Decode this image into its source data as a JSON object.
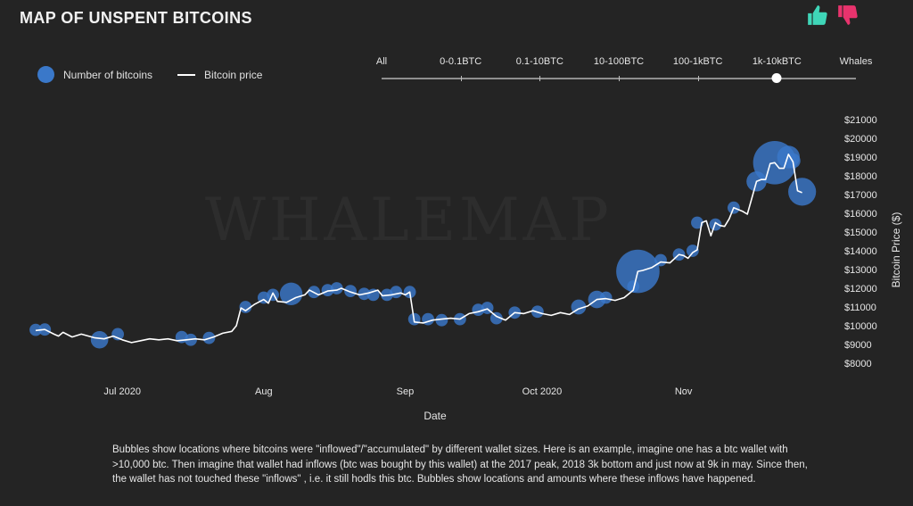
{
  "page": {
    "title": "MAP OF UNSPENT BITCOINS",
    "watermark": "WHALEMAP",
    "description": "Bubbles show locations where bitcoins were \"inflowed\"/\"accumulated\" by different wallet sizes. Here is an example, imagine one has a btc wallet with >10,000 btc. Then imagine that wallet had inflows (btc was bought by this wallet) at the 2017 peak, 2018 3k bottom and just now at 9k in may. Since then, the wallet has not touched these \"inflows\" , i.e. it still hodls this btc. Bubbles show locations and amounts where these inflows have happened."
  },
  "feedback": {
    "like_icon": "thumbs-up-icon",
    "dislike_icon": "thumbs-down-icon",
    "like_color": "#3fd6b8",
    "dislike_color": "#e8336d"
  },
  "legend": {
    "bubbles_label": "Number of bitcoins",
    "line_label": "Bitcoin price",
    "bubble_color": "#3a78c9",
    "line_color": "#ffffff"
  },
  "filter": {
    "options": [
      "All",
      "0-0.1BTC",
      "0.1-10BTC",
      "10-100BTC",
      "100-1kBTC",
      "1k-10kBTC",
      "Whales"
    ],
    "selected": "1k-10kBTC"
  },
  "chart_data": {
    "type": "scatter",
    "xlabel": "Date",
    "ylabel": "Bitcoin Price ($)",
    "x_ticks": [
      {
        "label": "Jul 2020",
        "date": "2020-07-01"
      },
      {
        "label": "Aug",
        "date": "2020-08-01"
      },
      {
        "label": "Sep",
        "date": "2020-09-01"
      },
      {
        "label": "Oct 2020",
        "date": "2020-10-01"
      },
      {
        "label": "Nov",
        "date": "2020-11-01"
      }
    ],
    "x_range": [
      "2020-06-12",
      "2020-11-30"
    ],
    "y_ticks": [
      8000,
      9000,
      10000,
      11000,
      12000,
      13000,
      14000,
      15000,
      16000,
      17000,
      18000,
      19000,
      20000,
      21000
    ],
    "y_tick_format": "${v}",
    "ylim": [
      8000,
      21000
    ],
    "y_axis_side": "right",
    "grid": false,
    "price_series": {
      "name": "Bitcoin price",
      "points": [
        [
          "2020-06-12",
          9750
        ],
        [
          "2020-06-14",
          9800
        ],
        [
          "2020-06-16",
          9550
        ],
        [
          "2020-06-17",
          9450
        ],
        [
          "2020-06-18",
          9650
        ],
        [
          "2020-06-20",
          9400
        ],
        [
          "2020-06-22",
          9550
        ],
        [
          "2020-06-25",
          9350
        ],
        [
          "2020-06-27",
          9300
        ],
        [
          "2020-06-29",
          9450
        ],
        [
          "2020-07-01",
          9250
        ],
        [
          "2020-07-03",
          9100
        ],
        [
          "2020-07-05",
          9200
        ],
        [
          "2020-07-07",
          9300
        ],
        [
          "2020-07-09",
          9250
        ],
        [
          "2020-07-11",
          9300
        ],
        [
          "2020-07-13",
          9200
        ],
        [
          "2020-07-15",
          9250
        ],
        [
          "2020-07-17",
          9300
        ],
        [
          "2020-07-19",
          9250
        ],
        [
          "2020-07-21",
          9400
        ],
        [
          "2020-07-23",
          9600
        ],
        [
          "2020-07-25",
          9700
        ],
        [
          "2020-07-26",
          10000
        ],
        [
          "2020-07-27",
          10950
        ],
        [
          "2020-07-28",
          10800
        ],
        [
          "2020-07-30",
          11150
        ],
        [
          "2020-08-01",
          11400
        ],
        [
          "2020-08-02",
          11200
        ],
        [
          "2020-08-03",
          11750
        ],
        [
          "2020-08-04",
          11300
        ],
        [
          "2020-08-06",
          11250
        ],
        [
          "2020-08-08",
          11500
        ],
        [
          "2020-08-10",
          11650
        ],
        [
          "2020-08-11",
          11900
        ],
        [
          "2020-08-13",
          11650
        ],
        [
          "2020-08-15",
          11850
        ],
        [
          "2020-08-17",
          11900
        ],
        [
          "2020-08-18",
          12000
        ],
        [
          "2020-08-20",
          11800
        ],
        [
          "2020-08-22",
          11650
        ],
        [
          "2020-08-24",
          11750
        ],
        [
          "2020-08-26",
          11900
        ],
        [
          "2020-08-27",
          11600
        ],
        [
          "2020-08-29",
          11650
        ],
        [
          "2020-08-31",
          11750
        ],
        [
          "2020-09-01",
          11650
        ],
        [
          "2020-09-02",
          11800
        ],
        [
          "2020-09-03",
          10200
        ],
        [
          "2020-09-05",
          10150
        ],
        [
          "2020-09-07",
          10300
        ],
        [
          "2020-09-09",
          10350
        ],
        [
          "2020-09-11",
          10400
        ],
        [
          "2020-09-13",
          10350
        ],
        [
          "2020-09-15",
          10650
        ],
        [
          "2020-09-17",
          10750
        ],
        [
          "2020-09-19",
          10900
        ],
        [
          "2020-09-21",
          10500
        ],
        [
          "2020-09-23",
          10300
        ],
        [
          "2020-09-25",
          10700
        ],
        [
          "2020-09-27",
          10650
        ],
        [
          "2020-09-29",
          10800
        ],
        [
          "2020-10-01",
          10650
        ],
        [
          "2020-10-03",
          10550
        ],
        [
          "2020-10-05",
          10700
        ],
        [
          "2020-10-07",
          10600
        ],
        [
          "2020-10-09",
          10900
        ],
        [
          "2020-10-11",
          11050
        ],
        [
          "2020-10-13",
          11400
        ],
        [
          "2020-10-15",
          11450
        ],
        [
          "2020-10-17",
          11350
        ],
        [
          "2020-10-19",
          11500
        ],
        [
          "2020-10-21",
          11900
        ],
        [
          "2020-10-22",
          12900
        ],
        [
          "2020-10-23",
          12950
        ],
        [
          "2020-10-25",
          13100
        ],
        [
          "2020-10-27",
          13400
        ],
        [
          "2020-10-29",
          13350
        ],
        [
          "2020-10-31",
          13800
        ],
        [
          "2020-11-01",
          13750
        ],
        [
          "2020-11-02",
          13600
        ],
        [
          "2020-11-03",
          13900
        ],
        [
          "2020-11-04",
          14050
        ],
        [
          "2020-11-05",
          15500
        ],
        [
          "2020-11-06",
          15600
        ],
        [
          "2020-11-07",
          14800
        ],
        [
          "2020-11-08",
          15500
        ],
        [
          "2020-11-09",
          15350
        ],
        [
          "2020-11-10",
          15300
        ],
        [
          "2020-11-11",
          15700
        ],
        [
          "2020-11-12",
          16300
        ],
        [
          "2020-11-14",
          16100
        ],
        [
          "2020-11-15",
          15950
        ],
        [
          "2020-11-17",
          17700
        ],
        [
          "2020-11-18",
          17800
        ],
        [
          "2020-11-19",
          17800
        ],
        [
          "2020-11-20",
          18650
        ],
        [
          "2020-11-21",
          18700
        ],
        [
          "2020-11-22",
          18400
        ],
        [
          "2020-11-23",
          18400
        ],
        [
          "2020-11-24",
          19150
        ],
        [
          "2020-11-25",
          18750
        ],
        [
          "2020-11-26",
          17200
        ],
        [
          "2020-11-27",
          17100
        ]
      ]
    },
    "bubble_series": {
      "name": "Number of bitcoins",
      "points": [
        [
          "2020-06-12",
          9780,
          2
        ],
        [
          "2020-06-14",
          9800,
          2
        ],
        [
          "2020-06-26",
          9250,
          4
        ],
        [
          "2020-06-30",
          9550,
          2
        ],
        [
          "2020-07-14",
          9400,
          2
        ],
        [
          "2020-07-16",
          9250,
          2
        ],
        [
          "2020-07-20",
          9350,
          2
        ],
        [
          "2020-07-28",
          11000,
          2
        ],
        [
          "2020-08-01",
          11500,
          2
        ],
        [
          "2020-08-03",
          11650,
          2
        ],
        [
          "2020-08-07",
          11700,
          6
        ],
        [
          "2020-08-12",
          11800,
          2
        ],
        [
          "2020-08-15",
          11900,
          2
        ],
        [
          "2020-08-17",
          12000,
          2
        ],
        [
          "2020-08-20",
          11850,
          2
        ],
        [
          "2020-08-23",
          11700,
          2
        ],
        [
          "2020-08-25",
          11650,
          2
        ],
        [
          "2020-08-28",
          11650,
          2
        ],
        [
          "2020-08-30",
          11800,
          2
        ],
        [
          "2020-09-02",
          11800,
          2
        ],
        [
          "2020-09-03",
          10350,
          2
        ],
        [
          "2020-09-06",
          10350,
          2
        ],
        [
          "2020-09-09",
          10300,
          2
        ],
        [
          "2020-09-13",
          10350,
          2
        ],
        [
          "2020-09-17",
          10850,
          2
        ],
        [
          "2020-09-19",
          10950,
          2
        ],
        [
          "2020-09-21",
          10400,
          2
        ],
        [
          "2020-09-25",
          10700,
          2
        ],
        [
          "2020-09-30",
          10750,
          2
        ],
        [
          "2020-10-09",
          11000,
          3
        ],
        [
          "2020-10-13",
          11400,
          4
        ],
        [
          "2020-10-15",
          11500,
          2
        ],
        [
          "2020-10-21",
          12100,
          2
        ],
        [
          "2020-10-22",
          12900,
          14
        ],
        [
          "2020-10-27",
          13500,
          2
        ],
        [
          "2020-10-31",
          13800,
          2
        ],
        [
          "2020-11-03",
          14000,
          2
        ],
        [
          "2020-11-04",
          15500,
          2
        ],
        [
          "2020-11-08",
          15400,
          2
        ],
        [
          "2020-11-12",
          16300,
          2
        ],
        [
          "2020-11-17",
          17700,
          5
        ],
        [
          "2020-11-21",
          18700,
          14
        ],
        [
          "2020-11-24",
          19000,
          6
        ],
        [
          "2020-11-25",
          18800,
          3
        ],
        [
          "2020-11-27",
          17150,
          8
        ]
      ]
    }
  }
}
